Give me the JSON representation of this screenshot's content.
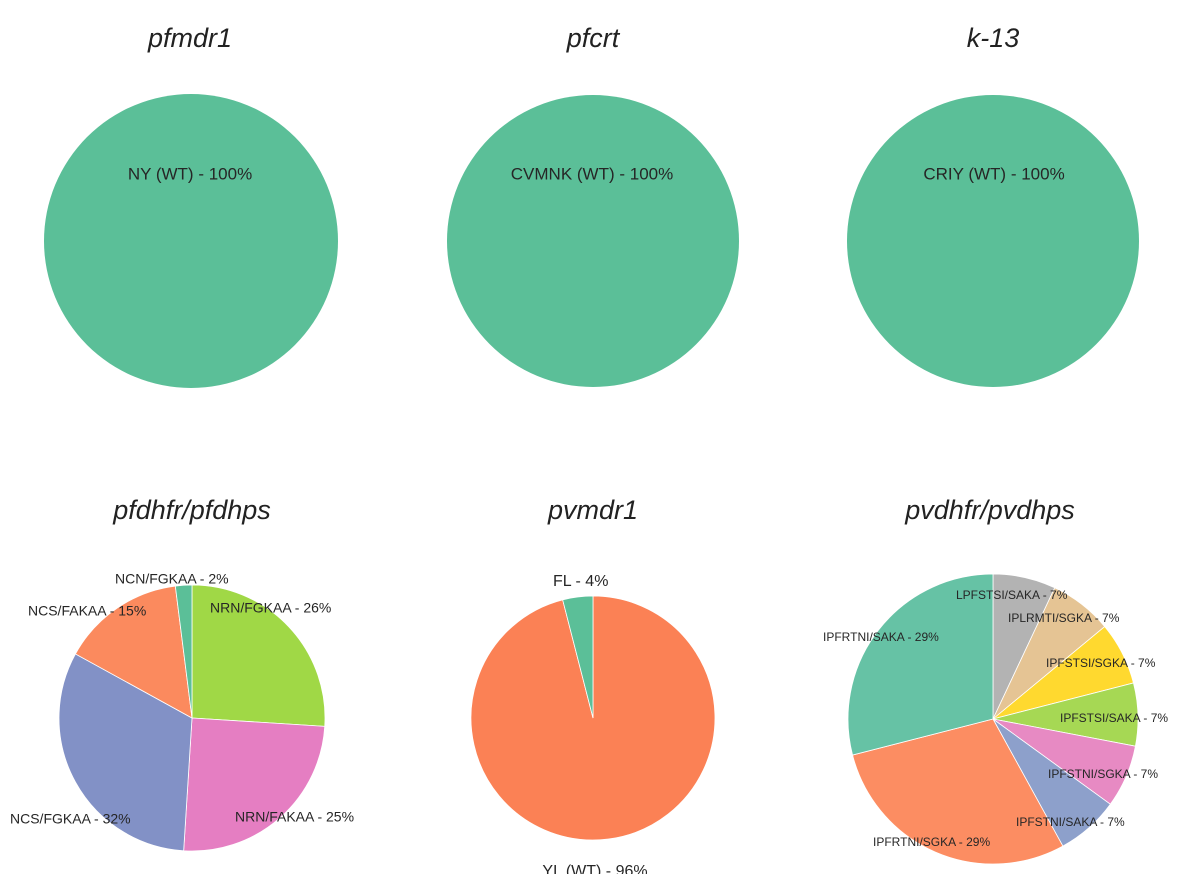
{
  "chart_data": [
    {
      "type": "pie",
      "title": "pfmdr1",
      "slices": [
        {
          "label": "NY (WT) - 100%",
          "value": 100,
          "color": "#5bbf98"
        }
      ]
    },
    {
      "type": "pie",
      "title": "pfcrt",
      "slices": [
        {
          "label": "CVMNK (WT) - 100%",
          "value": 100,
          "color": "#5bbf98"
        }
      ]
    },
    {
      "type": "pie",
      "title": "k-13",
      "slices": [
        {
          "label": "CRIY (WT) - 100%",
          "value": 100,
          "color": "#5bbf98"
        }
      ]
    },
    {
      "type": "pie",
      "title": "pfdhfr/pfdhps",
      "slices": [
        {
          "label": "NRN/FGKAA - 26%",
          "value": 26,
          "color": "#a0d846"
        },
        {
          "label": "NRN/FAKAA - 25%",
          "value": 25,
          "color": "#e57ec2"
        },
        {
          "label": "NCS/FGKAA - 32%",
          "value": 32,
          "color": "#8291c6"
        },
        {
          "label": "NCS/FAKAA - 15%",
          "value": 15,
          "color": "#fb8a5e"
        },
        {
          "label": "NCN/FGKAA - 2%",
          "value": 2,
          "color": "#5bbf98"
        }
      ]
    },
    {
      "type": "pie",
      "title": "pvmdr1",
      "slices": [
        {
          "label": "YL (WT) - 96%",
          "value": 96,
          "color": "#fb8155"
        },
        {
          "label": "FL - 4%",
          "value": 4,
          "color": "#5bbf98"
        }
      ]
    },
    {
      "type": "pie",
      "title": "pvdhfr/pvdhps",
      "slices": [
        {
          "label": "LPFSTSI/SAKA - 7%",
          "value": 7,
          "color": "#b3b3b3"
        },
        {
          "label": "IPLRMTI/SGKA - 7%",
          "value": 7,
          "color": "#e5c494"
        },
        {
          "label": "IPFSTSI/SGKA - 7%",
          "value": 7,
          "color": "#ffd92f"
        },
        {
          "label": "IPFSTSI/SAKA - 7%",
          "value": 7,
          "color": "#a6d854"
        },
        {
          "label": "IPFSTNI/SGKA - 7%",
          "value": 7,
          "color": "#e78ac3"
        },
        {
          "label": "IPFSTNI/SAKA - 7%",
          "value": 7,
          "color": "#8da0cb"
        },
        {
          "label": "IPFRTNI/SGKA - 29%",
          "value": 29,
          "color": "#fc8d62"
        },
        {
          "label": "IPFRTNI/SAKA - 29%",
          "value": 29,
          "color": "#66c2a5"
        }
      ]
    }
  ]
}
